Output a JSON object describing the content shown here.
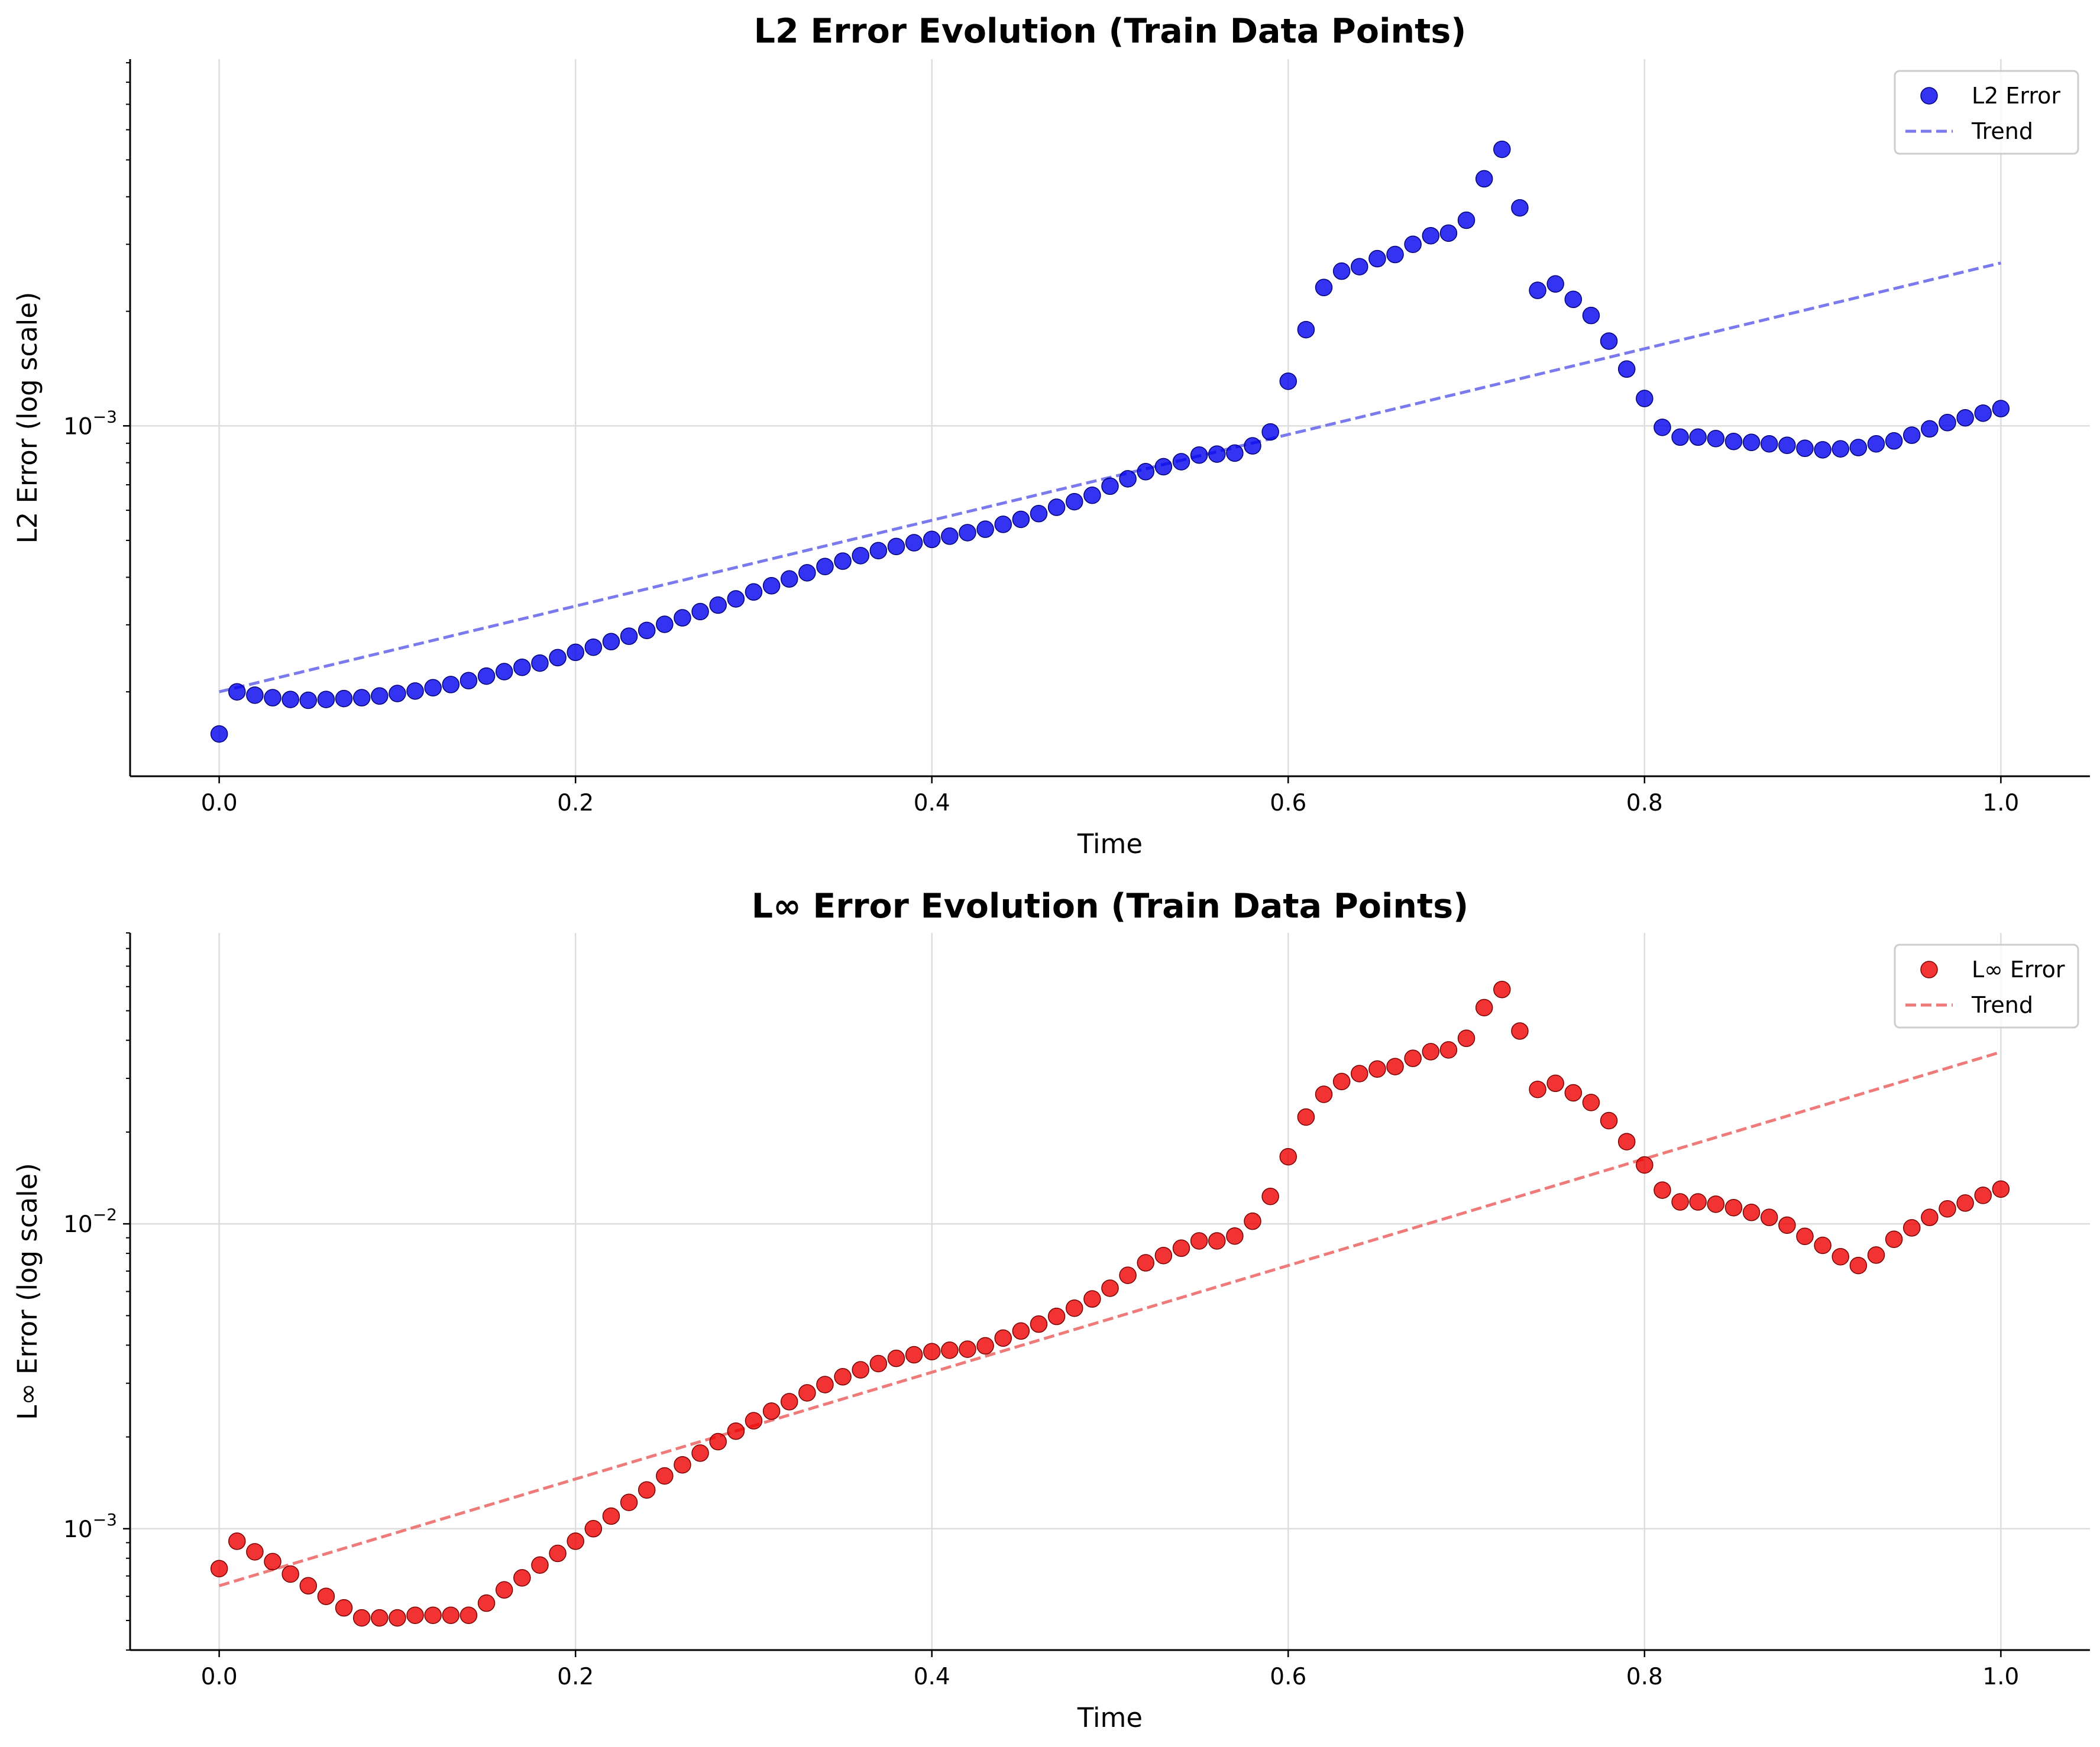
{
  "chart_data": [
    {
      "type": "scatter",
      "title": "L2 Error Evolution (Train Data Points)",
      "xlabel": "Time",
      "ylabel": "L2 Error (log scale)",
      "xlim": [
        -0.05,
        1.05
      ],
      "xticks": [
        "0.0",
        "0.2",
        "0.4",
        "0.6",
        "0.8",
        "1.0"
      ],
      "yscale": "log",
      "ylim": [
        0.00012,
        0.0092
      ],
      "yticks": [
        {
          "label": "10",
          "exp": "−3",
          "value": 0.001
        }
      ],
      "grid": true,
      "legend": "top-right",
      "colors": {
        "points": "#0000ee",
        "edge": "#00007a",
        "trend": "#7a7aee"
      },
      "series": [
        {
          "name": "L2 Error",
          "x": [
            0.0,
            0.01,
            0.02,
            0.03,
            0.04,
            0.05,
            0.06,
            0.07,
            0.08,
            0.09,
            0.1,
            0.11,
            0.12,
            0.13,
            0.14,
            0.15,
            0.16,
            0.17,
            0.18,
            0.19,
            0.2,
            0.21,
            0.22,
            0.23,
            0.24,
            0.25,
            0.26,
            0.27,
            0.28,
            0.29,
            0.3,
            0.31,
            0.32,
            0.33,
            0.34,
            0.35,
            0.36,
            0.37,
            0.38,
            0.39,
            0.4,
            0.41,
            0.42,
            0.43,
            0.44,
            0.45,
            0.46,
            0.47,
            0.48,
            0.49,
            0.5,
            0.51,
            0.52,
            0.53,
            0.54,
            0.55,
            0.56,
            0.57,
            0.58,
            0.59,
            0.6,
            0.61,
            0.62,
            0.63,
            0.64,
            0.65,
            0.66,
            0.67,
            0.68,
            0.69,
            0.7,
            0.71,
            0.72,
            0.73,
            0.74,
            0.75,
            0.76,
            0.77,
            0.78,
            0.79,
            0.8,
            0.81,
            0.82,
            0.83,
            0.84,
            0.85,
            0.86,
            0.87,
            0.88,
            0.89,
            0.9,
            0.91,
            0.92,
            0.93,
            0.94,
            0.95,
            0.96,
            0.97,
            0.98,
            0.99,
            1.0
          ],
          "y": [
            0.000155,
            0.0002,
            0.000196,
            0.000193,
            0.000191,
            0.00019,
            0.000191,
            0.000192,
            0.000193,
            0.000195,
            0.000198,
            0.000201,
            0.000205,
            0.000209,
            0.000214,
            0.00022,
            0.000226,
            0.000232,
            0.000238,
            0.000246,
            0.000254,
            0.000262,
            0.000271,
            0.00028,
            0.00029,
            0.000301,
            0.000313,
            0.000325,
            0.000338,
            0.000351,
            0.000366,
            0.00038,
            0.000396,
            0.000411,
            0.000427,
            0.000441,
            0.000456,
            0.00047,
            0.000482,
            0.000493,
            0.000503,
            0.000513,
            0.000524,
            0.000535,
            0.000551,
            0.000568,
            0.000588,
            0.000611,
            0.000632,
            0.000657,
            0.000694,
            0.000726,
            0.000758,
            0.000781,
            0.000805,
            0.000838,
            0.000843,
            0.000848,
            0.000886,
            0.000964,
            0.00131,
            0.00179,
            0.00231,
            0.00255,
            0.00262,
            0.00275,
            0.00282,
            0.003,
            0.00316,
            0.00321,
            0.00347,
            0.00446,
            0.00533,
            0.00374,
            0.00227,
            0.00236,
            0.00215,
            0.00195,
            0.00167,
            0.00141,
            0.00118,
            0.000991,
            0.000934,
            0.000934,
            0.000926,
            0.00091,
            0.000905,
            0.000897,
            0.000889,
            0.000873,
            0.000865,
            0.00087,
            0.000877,
            0.000897,
            0.000913,
            0.000945,
            0.000982,
            0.00102,
            0.00105,
            0.00108,
            0.00111
          ]
        },
        {
          "name": "Trend",
          "line": "dashed",
          "x": [
            0.0,
            1.0
          ],
          "y": [
            0.0002,
            0.00268
          ]
        }
      ]
    },
    {
      "type": "scatter",
      "title": "L∞ Error Evolution (Train Data Points)",
      "xlabel": "Time",
      "ylabel": "L∞ Error (log scale)",
      "xlim": [
        -0.05,
        1.05
      ],
      "xticks": [
        "0.0",
        "0.2",
        "0.4",
        "0.6",
        "0.8",
        "1.0"
      ],
      "yscale": "log",
      "ylim": [
        0.0004,
        0.09
      ],
      "yticks": [
        {
          "label": "10",
          "exp": "−3",
          "value": 0.001
        },
        {
          "label": "10",
          "exp": "−2",
          "value": 0.01
        }
      ],
      "grid": true,
      "legend": "top-right",
      "colors": {
        "points": "#ee0000",
        "edge": "#7a0000",
        "trend": "#ee7a7a"
      },
      "series": [
        {
          "name": "L∞ Error",
          "x": [
            0.0,
            0.01,
            0.02,
            0.03,
            0.04,
            0.05,
            0.06,
            0.07,
            0.08,
            0.09,
            0.1,
            0.11,
            0.12,
            0.13,
            0.14,
            0.15,
            0.16,
            0.17,
            0.18,
            0.19,
            0.2,
            0.21,
            0.22,
            0.23,
            0.24,
            0.25,
            0.26,
            0.27,
            0.28,
            0.29,
            0.3,
            0.31,
            0.32,
            0.33,
            0.34,
            0.35,
            0.36,
            0.37,
            0.38,
            0.39,
            0.4,
            0.41,
            0.42,
            0.43,
            0.44,
            0.45,
            0.46,
            0.47,
            0.48,
            0.49,
            0.5,
            0.51,
            0.52,
            0.53,
            0.54,
            0.55,
            0.56,
            0.57,
            0.58,
            0.59,
            0.6,
            0.61,
            0.62,
            0.63,
            0.64,
            0.65,
            0.66,
            0.67,
            0.68,
            0.69,
            0.7,
            0.71,
            0.72,
            0.73,
            0.74,
            0.75,
            0.76,
            0.77,
            0.78,
            0.79,
            0.8,
            0.81,
            0.82,
            0.83,
            0.84,
            0.85,
            0.86,
            0.87,
            0.88,
            0.89,
            0.9,
            0.91,
            0.92,
            0.93,
            0.94,
            0.95,
            0.96,
            0.97,
            0.98,
            0.99,
            1.0
          ],
          "y": [
            0.00074,
            0.00091,
            0.00084,
            0.00078,
            0.00071,
            0.00065,
            0.0006,
            0.00055,
            0.00051,
            0.00051,
            0.00051,
            0.00052,
            0.00052,
            0.00052,
            0.00052,
            0.00057,
            0.00063,
            0.00069,
            0.00076,
            0.00083,
            0.00091,
            0.001,
            0.0011,
            0.00122,
            0.00134,
            0.00149,
            0.00162,
            0.00177,
            0.00193,
            0.00209,
            0.00226,
            0.00243,
            0.00261,
            0.00279,
            0.00297,
            0.00315,
            0.00332,
            0.00348,
            0.00362,
            0.00372,
            0.00381,
            0.00385,
            0.00388,
            0.00398,
            0.00422,
            0.00445,
            0.00469,
            0.00497,
            0.00529,
            0.00567,
            0.00615,
            0.00678,
            0.00745,
            0.00787,
            0.00832,
            0.00879,
            0.00879,
            0.00912,
            0.0102,
            0.0123,
            0.0166,
            0.0224,
            0.0266,
            0.0293,
            0.0311,
            0.0322,
            0.0328,
            0.0349,
            0.0367,
            0.0372,
            0.0406,
            0.0512,
            0.0587,
            0.0429,
            0.0276,
            0.0289,
            0.0269,
            0.025,
            0.0218,
            0.0186,
            0.0156,
            0.0129,
            0.0118,
            0.0118,
            0.0116,
            0.0113,
            0.0109,
            0.0105,
            0.0099,
            0.0091,
            0.0085,
            0.0078,
            0.0073,
            0.0079,
            0.0089,
            0.0097,
            0.0105,
            0.0112,
            0.0117,
            0.0124,
            0.013
          ]
        },
        {
          "name": "Trend",
          "line": "dashed",
          "x": [
            0.0,
            1.0
          ],
          "y": [
            0.00065,
            0.0366
          ]
        }
      ]
    }
  ]
}
